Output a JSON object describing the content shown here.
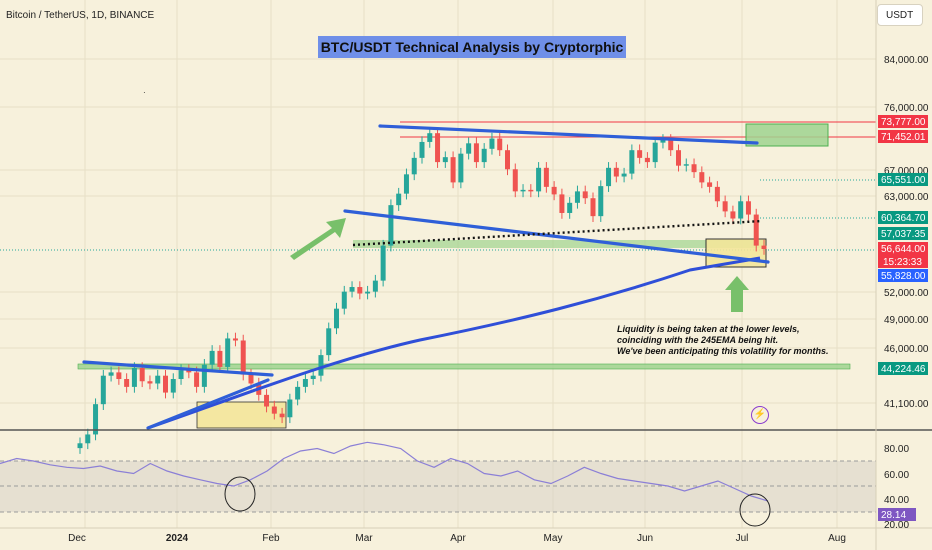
{
  "header": {
    "symbol_line": "Bitcoin / TetherUS, 1D, BINANCE",
    "currency": "USDT"
  },
  "title": "BTC/USDT Technical Analysis by Cryptorphic",
  "annotation": {
    "lines": [
      "Liquidity is being taken at the lower levels,",
      "coinciding with the 245EMA being hit.",
      "We've been anticipating this volatility for months."
    ]
  },
  "colors": {
    "background": "#f7f1dc",
    "up": "#26a69a",
    "down": "#ef5350",
    "trendline": "#2f5fd8",
    "ema": "#2f4fd8",
    "zone_green": "#9fd48f",
    "zone_yellow": "#f3e69a",
    "rsi": "#8b7fd6"
  },
  "chart_data": [
    {
      "type": "candlestick",
      "title": "Bitcoin / TetherUS, 1D, BINANCE",
      "x_axis_labels": [
        "Dec",
        "2024",
        "Feb",
        "Mar",
        "Apr",
        "May",
        "Jun",
        "Jul",
        "Aug"
      ],
      "y_axis_scale": "log",
      "y_ticks": [
        84000,
        76000,
        67000,
        63000,
        52000,
        49000,
        46000,
        41100
      ],
      "y_tick_labels": [
        "84,000.00",
        "76,000.00",
        "67,000.00",
        "63,000.00",
        "52,000.00",
        "49,000.00",
        "46,000.00",
        "41,100.00"
      ],
      "price_labels": [
        {
          "value": "73,777.00",
          "color": "#f23645"
        },
        {
          "value": "71,452.01",
          "color": "#f23645"
        },
        {
          "value": "65,551.00",
          "color": "#089981"
        },
        {
          "value": "60,364.70",
          "color": "#089981"
        },
        {
          "value": "57,037.35",
          "color": "#089981"
        },
        {
          "value": "56,644.00",
          "color": "#f23645"
        },
        {
          "value": "15:23:33",
          "color": "#f23645"
        },
        {
          "value": "55,828.00",
          "color": "#2962ff"
        },
        {
          "value": "44,224.46",
          "color": "#089981"
        }
      ],
      "approx_closes": [
        37800,
        38500,
        41000,
        43500,
        43800,
        43200,
        42500,
        44200,
        43000,
        42800,
        43500,
        42000,
        43200,
        44000,
        43800,
        42500,
        44500,
        45800,
        44300,
        47000,
        46800,
        43600,
        42800,
        41800,
        40800,
        40200,
        39900,
        41400,
        42500,
        43200,
        43500,
        45400,
        48000,
        50000,
        51800,
        52300,
        51600,
        51800,
        53000,
        57000,
        62000,
        63500,
        66100,
        68400,
        70700,
        72000,
        67800,
        68500,
        65000,
        69000,
        70500,
        67800,
        69700,
        71200,
        69500,
        66800,
        63800,
        64000,
        63800,
        67000,
        64400,
        63400,
        61000,
        62300,
        63800,
        62900,
        60600,
        64500,
        67000,
        65800,
        66200,
        69500,
        68400,
        67800,
        70600,
        71000,
        69500,
        67300,
        67500,
        66400,
        65000,
        64400,
        62500,
        61200,
        60300,
        62500,
        60800,
        57000,
        56600
      ],
      "ema_label": "245EMA",
      "ema_approx": [
        28000,
        33000,
        38000,
        42000,
        46000,
        49000,
        51500,
        53500,
        55000,
        55800
      ]
    },
    {
      "type": "line",
      "title": "RSI",
      "y_ticks": [
        80,
        60,
        40,
        20
      ],
      "y_tick_labels": [
        "80.00",
        "60.00",
        "40.00",
        "20.00"
      ],
      "current_value": "28.14",
      "approx_values": [
        58,
        62,
        60,
        57,
        55,
        54,
        56,
        52,
        50,
        58,
        52,
        48,
        45,
        42,
        40,
        45,
        52,
        62,
        68,
        70,
        66,
        72,
        75,
        73,
        70,
        60,
        55,
        62,
        58,
        50,
        48,
        52,
        45,
        42,
        48,
        55,
        50,
        46,
        44,
        42,
        40,
        36,
        40,
        44,
        38,
        32,
        28
      ]
    }
  ]
}
